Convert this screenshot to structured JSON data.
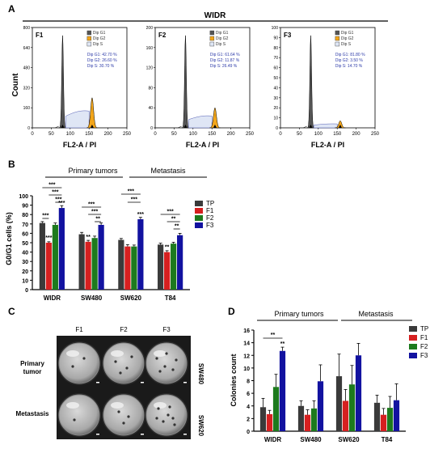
{
  "panel_labels": {
    "a": "A",
    "b": "B",
    "c": "C",
    "d": "D"
  },
  "panel_a": {
    "title": "WIDR",
    "ylabel": "Count",
    "xlabel": "FL2-A / PI",
    "xticks": [
      "0",
      "50",
      "100",
      "150",
      "200",
      "250"
    ],
    "legend_items": [
      "Dip G1",
      "Dip G2",
      "Dip S"
    ],
    "plots": [
      {
        "name": "F1",
        "yticks": [
          "0",
          "160",
          "320",
          "480",
          "640",
          "800"
        ],
        "stats": [
          "Dip G1: 42.70 %",
          "Dip G2: 26.60 %",
          "Dip S: 30.70 %"
        ]
      },
      {
        "name": "F2",
        "yticks": [
          "0",
          "40",
          "80",
          "120",
          "160",
          "200"
        ],
        "stats": [
          "Dip G1: 61.64 %",
          "Dip G2: 11.87 %",
          "Dip S: 26.49 %"
        ]
      },
      {
        "name": "F3",
        "yticks": [
          "0",
          "10",
          "20",
          "30",
          "40",
          "50",
          "60",
          "70",
          "80",
          "90",
          "100"
        ],
        "stats": [
          "Dip G1: 81.80 %",
          "Dip G2: 3.50 %",
          "Dip S: 14.70 %"
        ]
      }
    ]
  },
  "panel_b": {
    "group_labels": [
      "Primary tumors",
      "Metastasis"
    ],
    "sig": {
      "s3": "***",
      "s2": "**"
    },
    "chart_data": {
      "type": "bar",
      "ylabel": "G0/G1 cells (%)",
      "ylim": [
        0,
        100
      ],
      "yticks": [
        "0",
        "10",
        "20",
        "30",
        "40",
        "50",
        "60",
        "70",
        "80",
        "90",
        "100"
      ],
      "categories": [
        "WIDR",
        "SW480",
        "SW620",
        "T84"
      ],
      "series": [
        {
          "name": "TP",
          "color": "#3a3a3a",
          "values": [
            71,
            59,
            53,
            48
          ]
        },
        {
          "name": "F1",
          "color": "#d62020",
          "values": [
            50,
            51,
            46,
            40
          ]
        },
        {
          "name": "F2",
          "color": "#1d7a1d",
          "values": [
            69,
            55,
            46,
            49
          ]
        },
        {
          "name": "F3",
          "color": "#1212a0",
          "values": [
            87,
            69,
            75,
            58
          ]
        }
      ]
    }
  },
  "panel_c": {
    "cols": [
      "F1",
      "F2",
      "F3"
    ],
    "rows": [
      {
        "left": "Primary tumor",
        "right": "SW480"
      },
      {
        "left": "Metastasis",
        "right": "SW620"
      }
    ]
  },
  "panel_d": {
    "group_labels": [
      "Primary tumors",
      "Metastasis"
    ],
    "sig": {
      "s2": "**"
    },
    "chart_data": {
      "type": "bar",
      "ylabel": "Colonies count",
      "ylim": [
        0,
        16
      ],
      "yticks": [
        "0",
        "2",
        "4",
        "6",
        "8",
        "10",
        "12",
        "14",
        "16"
      ],
      "categories": [
        "WIDR",
        "SW480",
        "SW620",
        "T84"
      ],
      "series": [
        {
          "name": "TP",
          "color": "#3a3a3a",
          "values": [
            3.8,
            4.0,
            8.7,
            4.5
          ]
        },
        {
          "name": "F1",
          "color": "#d62020",
          "values": [
            2.7,
            2.6,
            4.8,
            2.6
          ]
        },
        {
          "name": "F2",
          "color": "#1d7a1d",
          "values": [
            7.0,
            3.6,
            7.4,
            3.7
          ]
        },
        {
          "name": "F3",
          "color": "#1212a0",
          "values": [
            12.7,
            7.9,
            12.0,
            4.9
          ]
        }
      ]
    }
  }
}
